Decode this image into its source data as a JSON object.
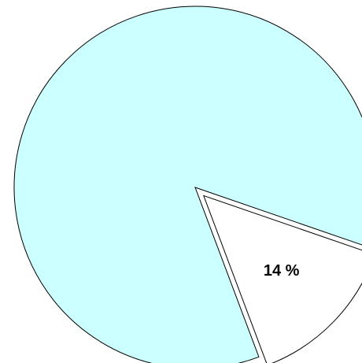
{
  "chart_data": {
    "type": "pie",
    "values": [
      14,
      86
    ],
    "value_labels": [
      "14 %",
      null
    ],
    "colors": [
      "#ffffff",
      "#ccffff"
    ],
    "explode": [
      true,
      false
    ]
  }
}
